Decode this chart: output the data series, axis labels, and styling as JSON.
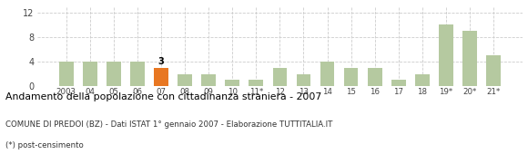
{
  "categories": [
    "2003",
    "04",
    "05",
    "06",
    "07",
    "08",
    "09",
    "10",
    "11*",
    "12",
    "13",
    "14",
    "15",
    "16",
    "17",
    "18",
    "19*",
    "20*",
    "21*"
  ],
  "values": [
    4,
    4,
    4,
    4,
    3,
    2,
    2,
    1,
    1,
    3,
    2,
    4,
    3,
    3,
    1,
    2,
    10,
    9,
    5
  ],
  "highlight_index": 4,
  "bar_color": "#b5c9a0",
  "highlight_color": "#e87722",
  "highlight_label": "3",
  "title": "Andamento della popolazione con cittadinanza straniera - 2007",
  "subtitle": "COMUNE DI PREDOI (BZ) - Dati ISTAT 1° gennaio 2007 - Elaborazione TUTTITALIA.IT",
  "footnote": "(*) post-censimento",
  "ylim": [
    0,
    13
  ],
  "yticks": [
    0,
    4,
    8,
    12
  ],
  "grid_color": "#cccccc",
  "background_color": "#ffffff"
}
